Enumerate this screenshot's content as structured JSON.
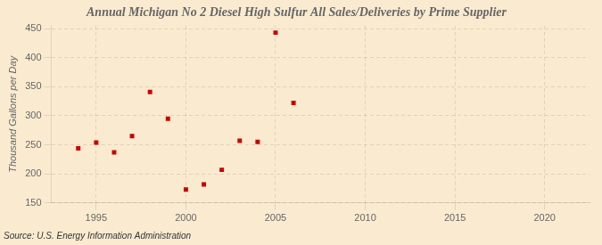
{
  "chart_data": {
    "type": "scatter",
    "title": "Annual Michigan No 2 Diesel High Sulfur All Sales/Deliveries by Prime Supplier",
    "ylabel": "Thousand Gallons per Day",
    "source": "Source: U.S. Energy Information Administration",
    "x": [
      1994,
      1995,
      1996,
      1997,
      1998,
      1999,
      2000,
      2001,
      2002,
      2003,
      2004,
      2005,
      2006
    ],
    "values": [
      244,
      254,
      237,
      265,
      341,
      295,
      173,
      182,
      207,
      257,
      255,
      443,
      322
    ],
    "color": "#cc0000",
    "marker": "square",
    "xlim": [
      1992.5,
      2022.5
    ],
    "xticks": [
      1995,
      2000,
      2005,
      2010,
      2015,
      2020
    ],
    "ylim": [
      150,
      455
    ],
    "yticks": [
      150,
      200,
      250,
      300,
      350,
      400,
      450
    ],
    "grid": true
  }
}
